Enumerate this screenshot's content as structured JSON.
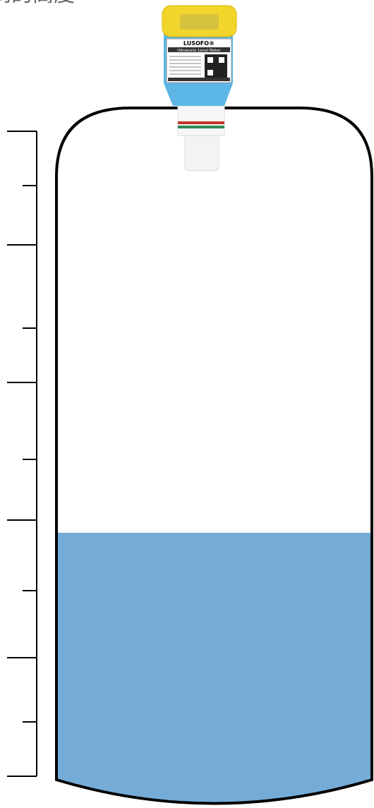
{
  "header": {
    "title": "到的高度"
  },
  "sensor": {
    "brand": "LUSOFO®",
    "model": "Ultrasonic Level Meter"
  }
}
